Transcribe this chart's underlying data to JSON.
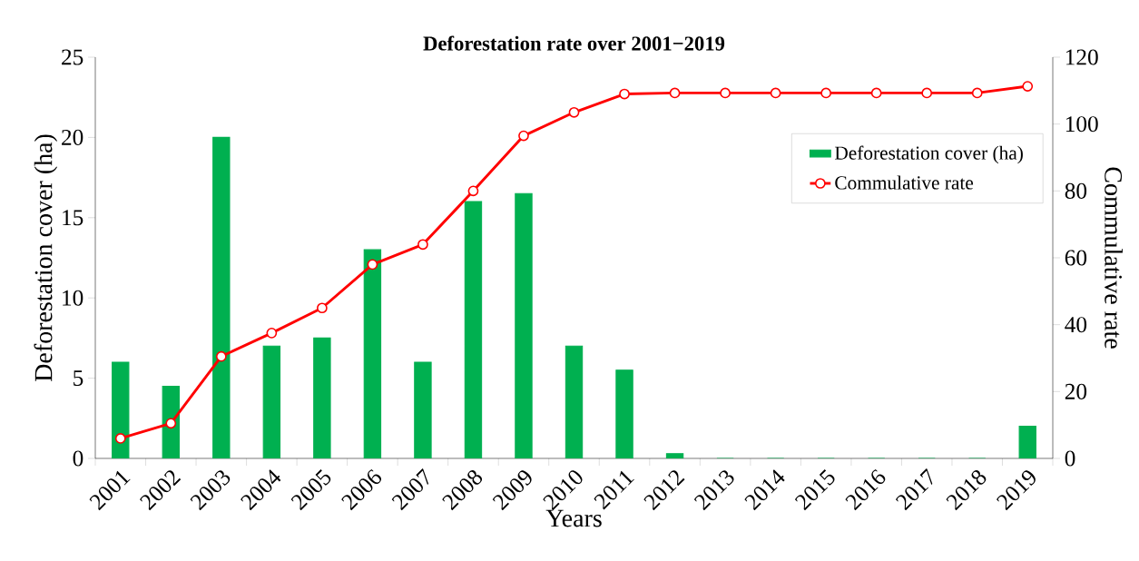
{
  "chart_data": {
    "type": "bar",
    "title": "Deforestation rate over 2001−2019",
    "xlabel": "Years",
    "ylabel": "Deforestation cover (ha)",
    "y2label": "Commulative rate",
    "categories": [
      "2001",
      "2002",
      "2003",
      "2004",
      "2005",
      "2006",
      "2007",
      "2008",
      "2009",
      "2010",
      "2011",
      "2012",
      "2013",
      "2014",
      "2015",
      "2016",
      "2017",
      "2018",
      "2019"
    ],
    "series": [
      {
        "name": "Deforestation cover (ha)",
        "color": "#00b050",
        "values": [
          6,
          4.5,
          20,
          7,
          7.5,
          13,
          6,
          16,
          16.5,
          7,
          5.5,
          0.3,
          0,
          0,
          0,
          0,
          0,
          0,
          2
        ]
      },
      {
        "name": "Commulative rate",
        "type": "line",
        "axis": "y2",
        "color": "#ff0000",
        "values": [
          6,
          10.5,
          30.5,
          37.5,
          45,
          58,
          64,
          80,
          96.5,
          103.5,
          109,
          109.3,
          109.3,
          109.3,
          109.3,
          109.3,
          109.3,
          109.3,
          111.3
        ]
      }
    ],
    "ylim": [
      0,
      25
    ],
    "yticks": [
      0,
      5,
      10,
      15,
      20,
      25
    ],
    "y2lim": [
      0,
      120
    ],
    "y2ticks": [
      0,
      20,
      40,
      60,
      80,
      100,
      120
    ],
    "marker": "circle",
    "line_style": "solid",
    "legend": "top right",
    "grid": false
  }
}
